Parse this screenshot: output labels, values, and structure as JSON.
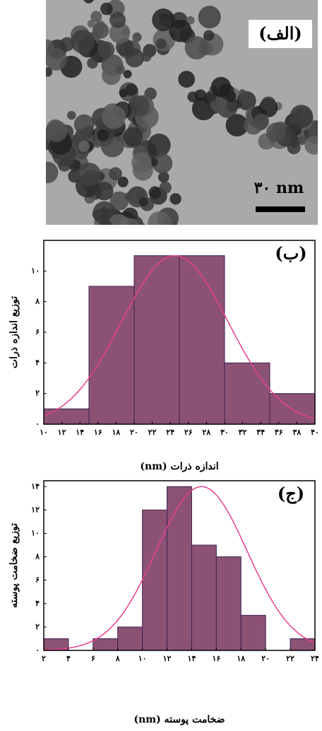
{
  "image": {
    "label": "(الف)",
    "scale": "۳۰ nm"
  },
  "chart_data": [
    {
      "type": "histogram",
      "label": "(ب)",
      "x_label": "اندازه ذرات (nm)",
      "y_label": "توزیع اندازه ذرات",
      "bins": [
        10,
        15,
        20,
        25,
        30,
        35,
        40
      ],
      "values": [
        1,
        9,
        11,
        11,
        4,
        2
      ],
      "color": "#8c5274",
      "edge_color": "#3b2150",
      "curve": {
        "mean": 24.5,
        "sd": 5.9,
        "peak": 11,
        "color": "#e8408f"
      },
      "xlim": [
        10,
        40
      ],
      "ylim": [
        0,
        12
      ],
      "xticks": [
        {
          "value": 10,
          "label": "۱۰"
        },
        {
          "value": 12,
          "label": "۱۲"
        },
        {
          "value": 14,
          "label": "۱۴"
        },
        {
          "value": 16,
          "label": "۱۶"
        },
        {
          "value": 18,
          "label": "۱۸"
        },
        {
          "value": 20,
          "label": "۲۰"
        },
        {
          "value": 22,
          "label": "۲۲"
        },
        {
          "value": 24,
          "label": "۲۴"
        },
        {
          "value": 26,
          "label": "۲۶"
        },
        {
          "value": 28,
          "label": "۲۸"
        },
        {
          "value": 30,
          "label": "۳۰"
        },
        {
          "value": 32,
          "label": "۳۲"
        },
        {
          "value": 34,
          "label": "۳۴"
        },
        {
          "value": 36,
          "label": "۳۶"
        },
        {
          "value": 38,
          "label": "۳۸"
        },
        {
          "value": 40,
          "label": "۴۰"
        }
      ],
      "yticks": [
        {
          "value": 0,
          "label": "۰"
        },
        {
          "value": 2,
          "label": "۲"
        },
        {
          "value": 4,
          "label": "۴"
        },
        {
          "value": 6,
          "label": "۶"
        },
        {
          "value": 8,
          "label": "۸"
        },
        {
          "value": 10,
          "label": "۱۰"
        }
      ]
    },
    {
      "type": "histogram",
      "label": "(ج)",
      "x_label": "ضخامت پوسته (nm)",
      "y_label": "توزیع ضخامت پوسته",
      "bins": [
        2,
        4,
        6,
        8,
        10,
        12,
        14,
        16,
        18,
        20,
        22,
        24
      ],
      "values": [
        1,
        0,
        1,
        2,
        12,
        14,
        9,
        8,
        3,
        0,
        1
      ],
      "color": "#8c5274",
      "edge_color": "#3b2150",
      "curve": {
        "mean": 14.8,
        "sd": 3.7,
        "peak": 14,
        "color": "#e8408f"
      },
      "xlim": [
        2,
        24
      ],
      "ylim": [
        0,
        14.5
      ],
      "xticks": [
        {
          "value": 2,
          "label": "۲"
        },
        {
          "value": 4,
          "label": "۴"
        },
        {
          "value": 6,
          "label": "۶"
        },
        {
          "value": 8,
          "label": "۸"
        },
        {
          "value": 10,
          "label": "۱۰"
        },
        {
          "value": 12,
          "label": "۱۲"
        },
        {
          "value": 14,
          "label": "۱۴"
        },
        {
          "value": 16,
          "label": "۱۶"
        },
        {
          "value": 18,
          "label": "۱۸"
        },
        {
          "value": 20,
          "label": "۲۰"
        },
        {
          "value": 22,
          "label": "۲۲"
        },
        {
          "value": 24,
          "label": "۲۴"
        }
      ],
      "yticks": [
        {
          "value": 0,
          "label": "۰"
        },
        {
          "value": 2,
          "label": "۲"
        },
        {
          "value": 4,
          "label": "۴"
        },
        {
          "value": 6,
          "label": "۶"
        },
        {
          "value": 8,
          "label": "۸"
        },
        {
          "value": 10,
          "label": "۱۰"
        },
        {
          "value": 12,
          "label": "۱۲"
        },
        {
          "value": 14,
          "label": "۱۴"
        }
      ]
    }
  ]
}
